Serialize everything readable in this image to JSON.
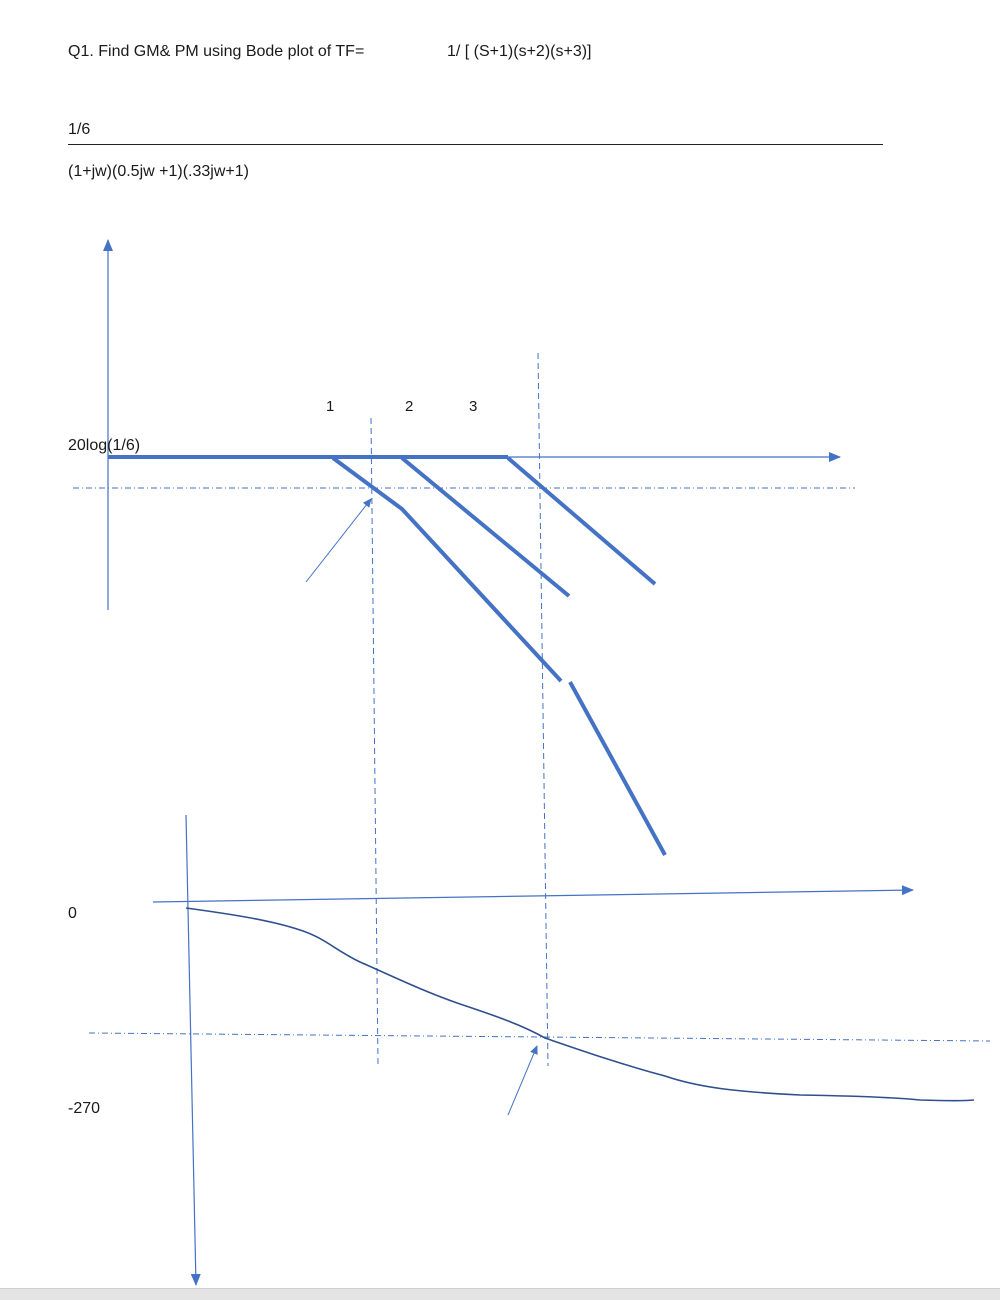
{
  "question": "Q1. Find GM& PM using Bode plot of TF=",
  "transfer_function": "1/ [ (S+1)(s+2)(s+3)]",
  "fraction": {
    "numerator": "1/6",
    "denominator": "(1+jw)(0.5jw +1)(.33jw+1)"
  },
  "magnitude_plot": {
    "gain_label": "20log(1/6)",
    "corner_frequencies": [
      "1",
      "2",
      "3"
    ]
  },
  "phase_plot": {
    "label_zero": "0",
    "label_minus_270": "-270"
  },
  "colors": {
    "plot_blue": "#4472c4",
    "curve_navy": "#2f4f8f",
    "text": "#1a1a1a"
  }
}
